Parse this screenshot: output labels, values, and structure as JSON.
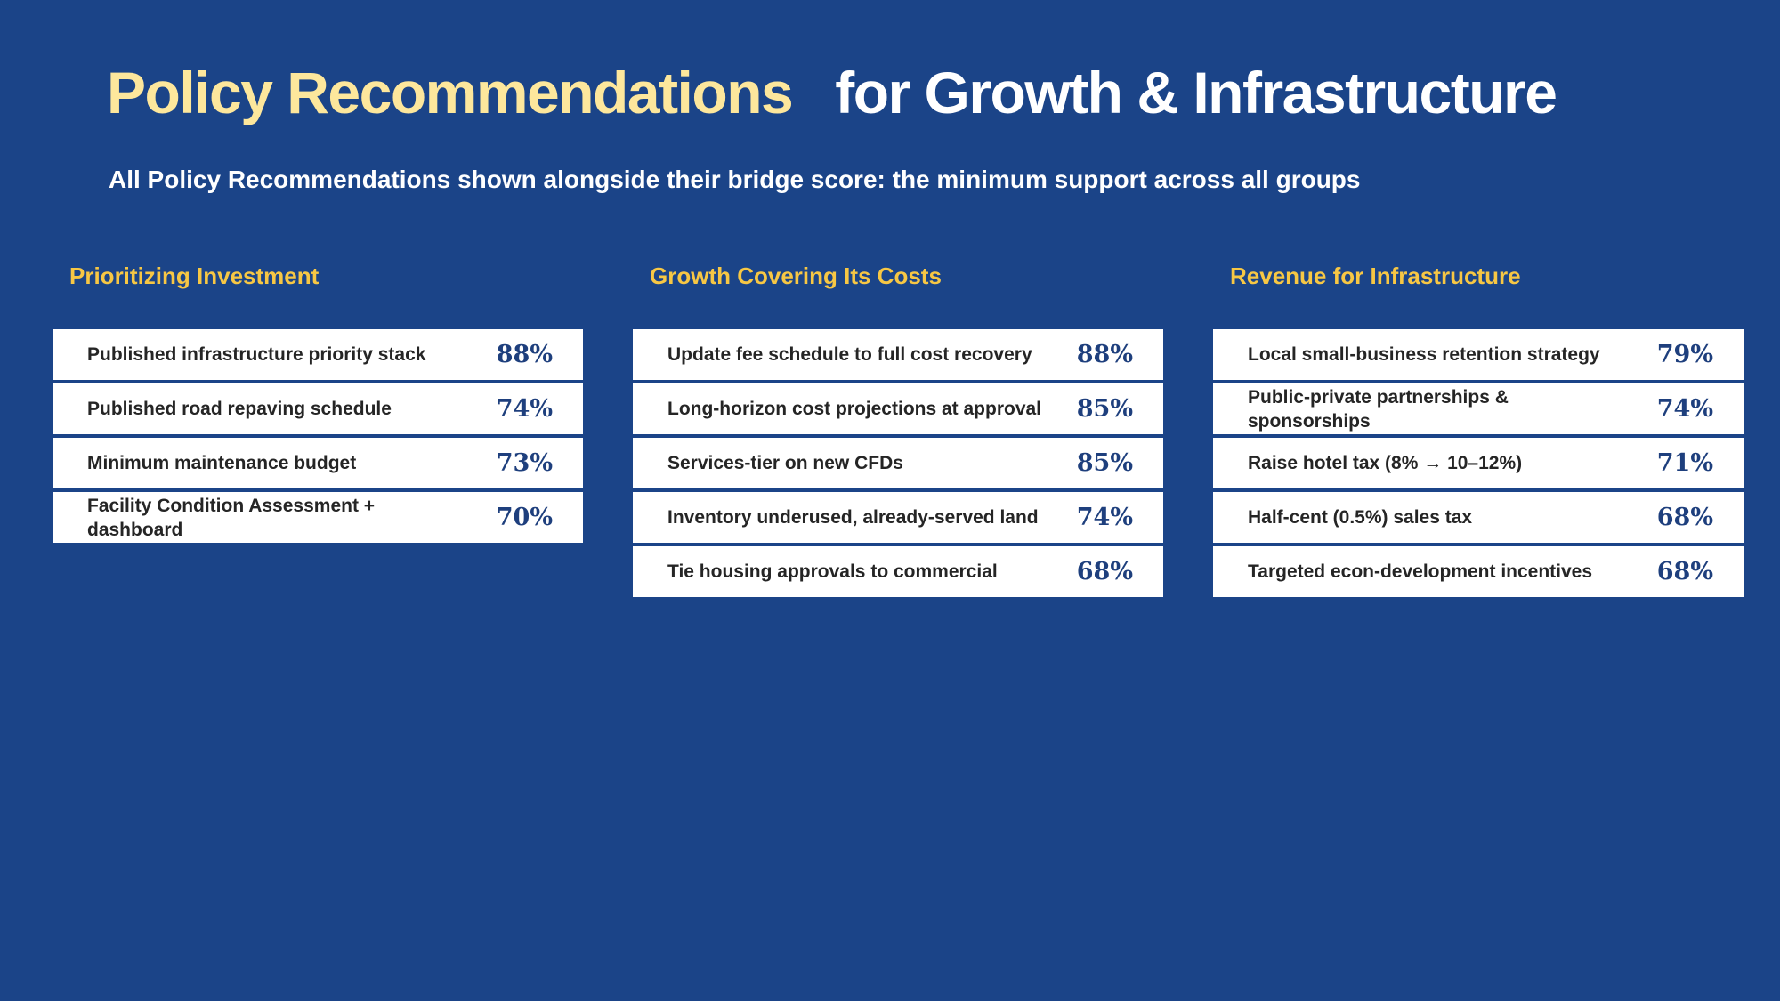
{
  "header": {
    "title_part1": "Policy Recommendations",
    "title_part2": "for Growth & Infrastructure",
    "subtitle": "All Policy Recommendations shown alongside their bridge score: the minimum support across all groups"
  },
  "columns": [
    {
      "heading": "Prioritizing Investment",
      "items": [
        {
          "label": "Published infrastructure priority stack",
          "score": "88%"
        },
        {
          "label": "Published road repaving schedule",
          "score": "74%"
        },
        {
          "label": "Minimum maintenance budget",
          "score": "73%"
        },
        {
          "label": "Facility Condition Assessment + dashboard",
          "score": "70%"
        }
      ]
    },
    {
      "heading": "Growth Covering Its Costs",
      "items": [
        {
          "label": "Update fee schedule to full cost recovery",
          "score": "88%"
        },
        {
          "label": "Long-horizon cost projections at approval",
          "score": "85%"
        },
        {
          "label": "Services-tier on new CFDs",
          "score": "85%"
        },
        {
          "label": "Inventory underused, already-served land",
          "score": "74%"
        },
        {
          "label": "Tie housing approvals to commercial",
          "score": "68%"
        }
      ]
    },
    {
      "heading": "Revenue for Infrastructure",
      "items": [
        {
          "label": "Local small-business retention strategy",
          "score": "79%"
        },
        {
          "label": "Public-private partnerships & sponsorships",
          "score": "74%"
        },
        {
          "label": "Raise hotel tax (8% → 10–12%)",
          "score": "71%"
        },
        {
          "label": "Half-cent (0.5%) sales tax",
          "score": "68%"
        },
        {
          "label": "Targeted econ-development incentives",
          "score": "68%"
        }
      ]
    }
  ]
}
